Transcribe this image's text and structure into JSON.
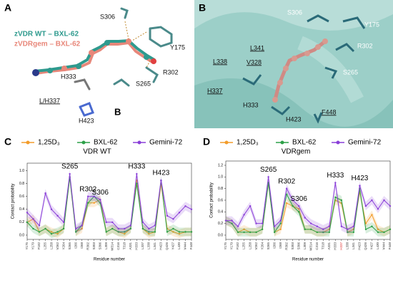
{
  "panels": {
    "a": {
      "letter": "A",
      "legend_wt": "zVDR WT – BXL-62",
      "legend_gem": "zVDRgem – BXL-62",
      "residues": [
        "S306",
        "Y175",
        "R302",
        "S265",
        "H333",
        "L/H337",
        "H423",
        "B"
      ]
    },
    "b": {
      "letter": "B",
      "residues": [
        "S306",
        "Y175",
        "R302",
        "S265",
        "L341",
        "L338",
        "V328",
        "H337",
        "H333",
        "H423",
        "F448"
      ]
    }
  },
  "chart_data": [
    {
      "type": "line",
      "panel": "C",
      "subtitle": "VDR WT",
      "xlabel": "Residue number",
      "ylabel": "Contact probability",
      "categories": [
        "Y175",
        "Y179",
        "F182",
        "L255",
        "L258",
        "V262",
        "Y264",
        "S265",
        "I266",
        "I268",
        "R302",
        "S303",
        "S306",
        "L309",
        "W314",
        "C316",
        "T318",
        "A331",
        "H333",
        "L337",
        "L338",
        "L341",
        "H423",
        "Q426",
        "Y427",
        "L430",
        "V444",
        "F448"
      ],
      "ylim": [
        0,
        1.05
      ],
      "yticks": [
        {
          "value": 0,
          "label": "0.0"
        },
        0.2,
        0.4,
        0.6,
        0.8,
        {
          "value": 1,
          "label": "1.0"
        }
      ],
      "series": [
        {
          "name": "1,25D₃",
          "color": "#f39c2a",
          "values": [
            0.2,
            0.25,
            0.05,
            0.1,
            0.05,
            0.02,
            0.1,
            0.9,
            0.05,
            0.1,
            0.5,
            0.5,
            0.55,
            0.05,
            0.1,
            0.05,
            0.02,
            0.1,
            0.85,
            0.1,
            0.02,
            0.05,
            0.8,
            0.1,
            0.05,
            0.02,
            0.05,
            0.05
          ]
        },
        {
          "name": "BXL-62",
          "color": "#2ca048",
          "values": [
            0.2,
            0.1,
            0.05,
            0.1,
            0.02,
            0.05,
            0.1,
            0.9,
            0.05,
            0.15,
            0.5,
            0.6,
            0.5,
            0.05,
            0.1,
            0.05,
            0.05,
            0.1,
            0.8,
            0.1,
            0.05,
            0.05,
            0.85,
            0.05,
            0.1,
            0.05,
            0.05,
            0.05
          ]
        },
        {
          "name": "Gemini-72",
          "color": "#8a3fd8",
          "values": [
            0.35,
            0.25,
            0.15,
            0.65,
            0.4,
            0.3,
            0.2,
            0.95,
            0.1,
            0.15,
            0.6,
            0.6,
            0.55,
            0.2,
            0.2,
            0.1,
            0.1,
            0.15,
            0.95,
            0.2,
            0.1,
            0.15,
            0.85,
            0.3,
            0.25,
            0.35,
            0.45,
            0.4
          ]
        }
      ],
      "annotations": [
        {
          "text": "S265",
          "at": "S265"
        },
        {
          "text": "R302",
          "at": "R302"
        },
        {
          "text": "S306",
          "at": "S306"
        },
        {
          "text": "H333",
          "at": "H333"
        },
        {
          "text": "H423",
          "at": "H423"
        }
      ]
    },
    {
      "type": "line",
      "panel": "D",
      "subtitle": "VDRgem",
      "xlabel": "Residue number",
      "ylabel": "Contact probability",
      "categories": [
        "Y175",
        "Y179",
        "F182",
        "L255",
        "L258",
        "V262",
        "Y264",
        "S265",
        "I266",
        "I268",
        "R302",
        "S303",
        "S306",
        "L309",
        "W314",
        "C316",
        "T318",
        "A331",
        "H333",
        "H337",
        "L338",
        "L341",
        "H423",
        "Q426",
        "Y427",
        "L430",
        "V444",
        "F448"
      ],
      "highlight": {
        "category": "H337",
        "color": "#e03030"
      },
      "ylim": [
        0,
        1.2
      ],
      "yticks": [
        {
          "value": 0,
          "label": "0.0"
        },
        0.2,
        0.4,
        0.6,
        0.8,
        {
          "value": 1,
          "label": "1.0"
        },
        1.2
      ],
      "series": [
        {
          "name": "1,25D₃",
          "color": "#f39c2a",
          "values": [
            0.25,
            0.2,
            0.05,
            0.1,
            0.05,
            0.05,
            0.1,
            0.9,
            0.05,
            0.1,
            0.55,
            0.5,
            0.45,
            0.1,
            0.1,
            0.05,
            0.05,
            0.1,
            0.6,
            0.55,
            0.05,
            0.1,
            0.75,
            0.2,
            0.35,
            0.1,
            0.05,
            0.1
          ]
        },
        {
          "name": "BXL-62",
          "color": "#2ca048",
          "values": [
            0.25,
            0.2,
            0.05,
            0.05,
            0.05,
            0.05,
            0.1,
            0.9,
            0.05,
            0.2,
            0.7,
            0.5,
            0.4,
            0.1,
            0.1,
            0.05,
            0.05,
            0.05,
            0.65,
            0.6,
            0.05,
            0.05,
            0.8,
            0.1,
            0.15,
            0.05,
            0.05,
            0.1
          ]
        },
        {
          "name": "Gemini-72",
          "color": "#8a3fd8",
          "values": [
            0.25,
            0.25,
            0.15,
            0.35,
            0.5,
            0.2,
            0.2,
            1.0,
            0.15,
            0.25,
            0.8,
            0.6,
            0.5,
            0.3,
            0.2,
            0.15,
            0.1,
            0.15,
            0.9,
            0.15,
            0.1,
            0.15,
            0.85,
            0.5,
            0.6,
            0.45,
            0.6,
            0.5
          ]
        }
      ],
      "annotations": [
        {
          "text": "S265",
          "at": "S265"
        },
        {
          "text": "R302",
          "at": "R302"
        },
        {
          "text": "S306",
          "at": "S306"
        },
        {
          "text": "H333",
          "at": "H333"
        },
        {
          "text": "H423",
          "at": "H423"
        }
      ]
    }
  ]
}
